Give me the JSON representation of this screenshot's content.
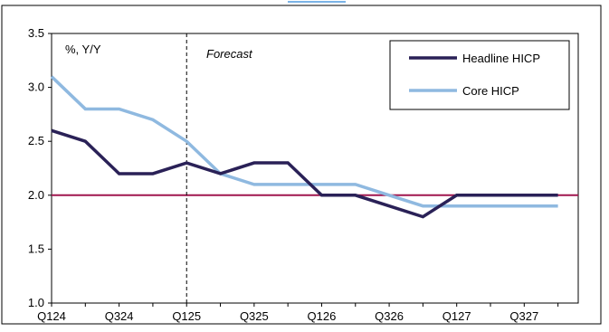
{
  "chart_data": {
    "type": "line",
    "unit_label": "%, Y/Y",
    "forecast_label": "Forecast",
    "forecast_start_category": "Q125",
    "categories": [
      "Q124",
      "Q224",
      "Q324",
      "Q424",
      "Q125",
      "Q225",
      "Q325",
      "Q425",
      "Q126",
      "Q226",
      "Q326",
      "Q426",
      "Q127",
      "Q227",
      "Q327",
      "Q427"
    ],
    "x_tick_labels": [
      "Q124",
      "Q324",
      "Q125",
      "Q325",
      "Q126",
      "Q326",
      "Q127",
      "Q327"
    ],
    "y_ticks": [
      "1.0",
      "1.5",
      "2.0",
      "2.5",
      "3.0",
      "3.5"
    ],
    "ylim": [
      1.0,
      3.5
    ],
    "grid": false,
    "legend_position": "top-right",
    "reference_line": {
      "value": 2.0,
      "color": "#a0174f"
    },
    "series": [
      {
        "name": "Headline HICP",
        "color": "#2a2157",
        "values": [
          2.6,
          2.5,
          2.2,
          2.2,
          2.3,
          2.2,
          2.3,
          2.3,
          2.0,
          2.0,
          1.9,
          1.8,
          2.0,
          2.0,
          2.0,
          2.0
        ]
      },
      {
        "name": "Core HICP",
        "color": "#8fb9e0",
        "values": [
          3.1,
          2.8,
          2.8,
          2.7,
          2.5,
          2.2,
          2.1,
          2.1,
          2.1,
          2.1,
          2.0,
          1.9,
          1.9,
          1.9,
          1.9,
          1.9
        ]
      }
    ]
  }
}
